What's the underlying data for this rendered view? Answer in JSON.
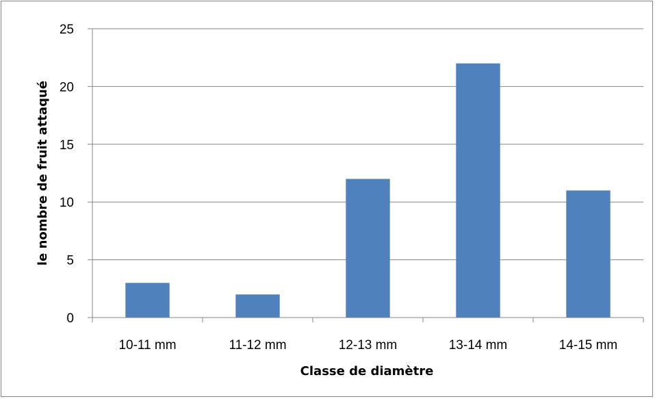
{
  "chart_data": {
    "type": "bar",
    "title": "",
    "xlabel": "Classe de diamètre",
    "ylabel": "le nombre de fruit attaqué",
    "categories": [
      "10-11 mm",
      "11-12 mm",
      "12-13 mm",
      "13-14 mm",
      "14-15 mm"
    ],
    "values": [
      3,
      2,
      12,
      22,
      11
    ],
    "ylim": [
      0,
      25
    ],
    "yticks": [
      0,
      5,
      10,
      15,
      20,
      25
    ],
    "grid": true,
    "legend": "none",
    "bar_color": "#4F81BD",
    "grid_color": "#868686"
  }
}
